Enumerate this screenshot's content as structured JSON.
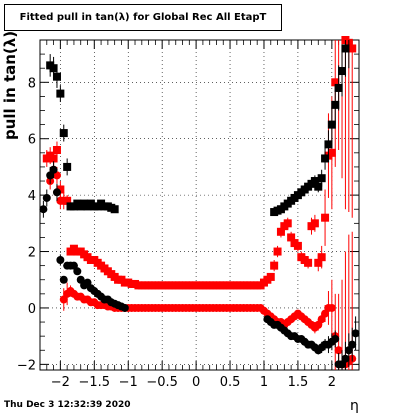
{
  "window": {
    "title": "Fitted pull in tan(λ) for Global Rec All EtapT",
    "datestamp": "Thu Dec  3 12:32:39 2020"
  },
  "chart_data": {
    "type": "scatter",
    "title": "Fitted pull in tan(λ) for Global Rec All EtapT",
    "xlabel": "η",
    "ylabel": "pull in tan(λ)",
    "xlim": [
      -2.3,
      2.4
    ],
    "ylim": [
      -2.2,
      9.5
    ],
    "grid": true,
    "xticks": [
      -2,
      -1.5,
      -1,
      -0.5,
      0,
      0.5,
      1,
      1.5,
      2
    ],
    "xtick_labels": [
      "−2",
      "−1.5",
      "−1",
      "−0.5",
      "0",
      "0.5",
      "1",
      "1.5",
      "2"
    ],
    "yticks": [
      -2,
      0,
      2,
      4,
      6,
      8
    ],
    "ytick_labels": [
      "−2",
      "0",
      "2",
      "4",
      "6",
      "8"
    ],
    "series": [
      {
        "color": "#000000",
        "marker": "square",
        "x": [
          -2.15,
          -2.1,
          -2.05,
          -2.0,
          -1.95,
          -1.9,
          -1.85,
          -1.8,
          -1.75,
          -1.7,
          -1.65,
          -1.6,
          -1.55,
          -1.5,
          -1.45,
          -1.4,
          -1.35,
          -1.3,
          -1.25,
          -1.2,
          1.15,
          1.2,
          1.25,
          1.3,
          1.35,
          1.4,
          1.45,
          1.5,
          1.55,
          1.6,
          1.65,
          1.7,
          1.75,
          1.8,
          1.85,
          1.9,
          1.95,
          2.0,
          2.05,
          2.1,
          2.15,
          2.2,
          2.25
        ],
        "y": [
          8.6,
          8.5,
          8.2,
          7.6,
          6.2,
          5.0,
          3.6,
          3.6,
          3.7,
          3.6,
          3.7,
          3.6,
          3.7,
          3.6,
          3.6,
          3.7,
          3.6,
          3.6,
          3.55,
          3.5,
          3.4,
          3.45,
          3.5,
          3.6,
          3.7,
          3.8,
          3.9,
          4.0,
          4.1,
          4.2,
          4.3,
          4.4,
          4.5,
          4.3,
          4.6,
          5.3,
          5.8,
          6.5,
          7.2,
          7.8,
          8.4,
          9.2,
          9.6
        ],
        "yerr": [
          0.4,
          0.4,
          0.4,
          0.3,
          0.3,
          0.3,
          0.1,
          0.1,
          0.1,
          0.1,
          0.1,
          0.1,
          0.1,
          0.1,
          0.1,
          0.1,
          0.1,
          0.1,
          0.1,
          0.1,
          0.1,
          0.1,
          0.1,
          0.1,
          0.1,
          0.1,
          0.1,
          0.15,
          0.15,
          0.15,
          0.15,
          0.15,
          0.2,
          0.2,
          0.3,
          0.4,
          0.5,
          0.6,
          0.7,
          0.8,
          0.9,
          1.0,
          1.1
        ]
      },
      {
        "color": "#000000",
        "marker": "circle",
        "x": [
          -2.25,
          -2.2,
          -2.15,
          -2.1,
          -2.05,
          -2.0,
          -1.95,
          -1.9,
          -1.85,
          -1.8,
          -1.75,
          -1.7,
          -1.65,
          -1.6,
          -1.55,
          -1.5,
          -1.45,
          -1.4,
          -1.35,
          -1.3,
          -1.25,
          -1.2,
          -1.15,
          -1.1,
          -1.05,
          1.05,
          1.1,
          1.15,
          1.2,
          1.25,
          1.3,
          1.35,
          1.4,
          1.45,
          1.5,
          1.55,
          1.6,
          1.65,
          1.7,
          1.75,
          1.8,
          1.85,
          1.9,
          1.95,
          2.0,
          2.05,
          2.1,
          2.15,
          2.2,
          2.25,
          2.3,
          2.35
        ],
        "y": [
          3.5,
          3.9,
          4.7,
          4.9,
          4.1,
          1.7,
          1.0,
          1.5,
          1.5,
          1.5,
          1.3,
          1.0,
          0.8,
          0.9,
          0.7,
          0.6,
          0.5,
          0.4,
          0.3,
          0.3,
          0.2,
          0.15,
          0.1,
          0.05,
          0.0,
          -0.4,
          -0.5,
          -0.6,
          -0.6,
          -0.7,
          -0.8,
          -0.9,
          -1.0,
          -1.0,
          -1.1,
          -1.1,
          -1.2,
          -1.3,
          -1.3,
          -1.4,
          -1.5,
          -1.4,
          -1.3,
          -1.3,
          -1.2,
          -1.1,
          -2.0,
          -2.0,
          -1.8,
          -1.5,
          -1.3,
          -0.9
        ],
        "yerr": [
          0.3,
          0.3,
          0.3,
          0.3,
          0.3,
          0.2,
          0.1,
          0.1,
          0.1,
          0.1,
          0.1,
          0.1,
          0.1,
          0.1,
          0.1,
          0.1,
          0.1,
          0.1,
          0.1,
          0.1,
          0.1,
          0.1,
          0.1,
          0.1,
          0.1,
          0.1,
          0.1,
          0.1,
          0.1,
          0.1,
          0.1,
          0.1,
          0.1,
          0.1,
          0.1,
          0.1,
          0.1,
          0.1,
          0.1,
          0.15,
          0.15,
          0.2,
          0.2,
          0.3,
          0.3,
          0.3,
          0.4,
          0.5,
          0.6,
          0.6,
          0.6,
          0.6
        ]
      },
      {
        "color": "#ff0000",
        "marker": "square",
        "x": [
          -2.2,
          -2.15,
          -2.1,
          -2.05,
          -2.0,
          -1.95,
          -1.9,
          -1.85,
          -1.8,
          -1.75,
          -1.7,
          -1.65,
          -1.6,
          -1.55,
          -1.5,
          -1.45,
          -1.4,
          -1.35,
          -1.3,
          -1.25,
          -1.2,
          -1.15,
          -1.1,
          -1.05,
          -1.0,
          -0.95,
          -0.9,
          -0.85,
          -0.8,
          -0.75,
          -0.7,
          -0.65,
          -0.6,
          -0.55,
          -0.5,
          -0.45,
          -0.4,
          -0.35,
          -0.3,
          -0.25,
          -0.2,
          -0.15,
          -0.1,
          -0.05,
          0.0,
          0.05,
          0.1,
          0.15,
          0.2,
          0.25,
          0.3,
          0.35,
          0.4,
          0.45,
          0.5,
          0.55,
          0.6,
          0.65,
          0.7,
          0.75,
          0.8,
          0.85,
          0.9,
          0.95,
          1.0,
          1.05,
          1.1,
          1.15,
          1.2,
          1.25,
          1.3,
          1.35,
          1.4,
          1.45,
          1.5,
          1.55,
          1.6,
          1.65,
          1.7,
          1.75,
          1.8,
          1.85,
          1.9,
          1.95,
          2.0,
          2.05,
          2.1,
          2.15,
          2.2,
          2.25,
          2.3
        ],
        "y": [
          5.3,
          5.4,
          5.3,
          5.6,
          4.2,
          3.8,
          3.8,
          2.0,
          2.1,
          2.0,
          2.0,
          1.9,
          1.8,
          1.7,
          1.7,
          1.6,
          1.5,
          1.4,
          1.3,
          1.2,
          1.1,
          1.0,
          1.0,
          0.9,
          0.9,
          0.85,
          0.85,
          0.8,
          0.8,
          0.8,
          0.8,
          0.8,
          0.8,
          0.8,
          0.8,
          0.8,
          0.8,
          0.8,
          0.8,
          0.8,
          0.8,
          0.8,
          0.8,
          0.8,
          0.8,
          0.8,
          0.8,
          0.8,
          0.8,
          0.8,
          0.8,
          0.8,
          0.8,
          0.8,
          0.8,
          0.8,
          0.8,
          0.8,
          0.8,
          0.8,
          0.8,
          0.8,
          0.8,
          0.8,
          0.9,
          1.0,
          1.1,
          1.5,
          2.0,
          2.7,
          2.9,
          3.0,
          2.5,
          2.3,
          2.2,
          1.8,
          1.7,
          1.6,
          2.9,
          3.0,
          1.6,
          1.8,
          3.2,
          5.4,
          5.5,
          8.0,
          9.6,
          9.6,
          9.5,
          9.4,
          9.2
        ],
        "yerr": [
          0.3,
          0.3,
          0.3,
          0.3,
          0.3,
          0.3,
          0.2,
          0.1,
          0.1,
          0.1,
          0.1,
          0.1,
          0.1,
          0.1,
          0.1,
          0.1,
          0.1,
          0.1,
          0.1,
          0.1,
          0.1,
          0.1,
          0.1,
          0.1,
          0.1,
          0.1,
          0.1,
          0.1,
          0.1,
          0.1,
          0.1,
          0.1,
          0.1,
          0.1,
          0.1,
          0.1,
          0.1,
          0.1,
          0.1,
          0.1,
          0.1,
          0.1,
          0.1,
          0.1,
          0.1,
          0.1,
          0.1,
          0.1,
          0.1,
          0.1,
          0.1,
          0.1,
          0.1,
          0.1,
          0.1,
          0.1,
          0.1,
          0.1,
          0.1,
          0.1,
          0.1,
          0.1,
          0.1,
          0.1,
          0.1,
          0.1,
          0.1,
          0.2,
          0.2,
          0.2,
          0.2,
          0.2,
          0.2,
          0.2,
          0.2,
          0.2,
          0.2,
          0.2,
          0.3,
          0.3,
          0.3,
          0.4,
          1.0,
          1.5,
          2.0,
          3.0,
          4.0,
          5.0,
          6.0,
          6.0,
          6.0
        ]
      },
      {
        "color": "#ff0000",
        "marker": "circle",
        "x": [
          -2.15,
          -2.1,
          -2.05,
          -2.0,
          -1.95,
          -1.9,
          -1.85,
          -1.8,
          -1.75,
          -1.7,
          -1.65,
          -1.6,
          -1.55,
          -1.5,
          -1.45,
          -1.4,
          -1.35,
          -1.3,
          -1.25,
          -1.2,
          -1.15,
          -1.1,
          -1.05,
          -1.0,
          -0.95,
          -0.9,
          -0.85,
          -0.8,
          -0.75,
          -0.7,
          -0.65,
          -0.6,
          -0.55,
          -0.5,
          -0.45,
          -0.4,
          -0.35,
          -0.3,
          -0.25,
          -0.2,
          -0.15,
          -0.1,
          -0.05,
          0.0,
          0.05,
          0.1,
          0.15,
          0.2,
          0.25,
          0.3,
          0.35,
          0.4,
          0.45,
          0.5,
          0.55,
          0.6,
          0.65,
          0.7,
          0.75,
          0.8,
          0.85,
          0.9,
          0.95,
          1.0,
          1.05,
          1.1,
          1.15,
          1.2,
          1.25,
          1.3,
          1.35,
          1.4,
          1.45,
          1.5,
          1.55,
          1.6,
          1.65,
          1.7,
          1.75,
          1.8,
          1.85,
          1.9,
          1.95,
          2.0,
          2.05,
          2.1,
          2.15,
          2.2,
          2.25,
          2.3
        ],
        "y": [
          4.5,
          4.9,
          4.7,
          3.8,
          0.3,
          0.5,
          0.6,
          0.5,
          0.4,
          0.4,
          0.3,
          0.3,
          0.2,
          0.2,
          0.1,
          0.1,
          0.1,
          0.05,
          0.05,
          0.0,
          0.0,
          0.0,
          0.0,
          0.0,
          0.0,
          0.0,
          0.0,
          0.0,
          0.0,
          0.0,
          0.0,
          0.0,
          0.0,
          0.0,
          0.0,
          0.0,
          0.0,
          0.0,
          0.0,
          0.0,
          0.0,
          0.0,
          0.0,
          0.0,
          0.0,
          0.0,
          0.0,
          0.0,
          0.0,
          0.0,
          0.0,
          0.0,
          0.0,
          0.0,
          0.0,
          0.0,
          0.0,
          0.0,
          0.0,
          0.0,
          0.0,
          0.0,
          0.0,
          -0.1,
          -0.2,
          -0.3,
          -0.4,
          -0.5,
          -0.5,
          -0.6,
          -0.5,
          -0.4,
          -0.3,
          -0.2,
          -0.3,
          -0.4,
          -0.5,
          -0.6,
          -0.7,
          -0.6,
          -0.4,
          -0.2,
          0.0,
          0.0,
          -1.0,
          -1.5,
          -2.0,
          -2.0,
          -1.9,
          -1.8
        ],
        "yerr": [
          0.3,
          0.3,
          0.3,
          0.3,
          0.4,
          0.4,
          0.2,
          0.1,
          0.1,
          0.1,
          0.1,
          0.1,
          0.1,
          0.1,
          0.1,
          0.1,
          0.1,
          0.1,
          0.1,
          0.1,
          0.1,
          0.1,
          0.1,
          0.1,
          0.1,
          0.1,
          0.1,
          0.1,
          0.1,
          0.1,
          0.1,
          0.1,
          0.1,
          0.1,
          0.1,
          0.1,
          0.1,
          0.1,
          0.1,
          0.1,
          0.1,
          0.1,
          0.1,
          0.1,
          0.1,
          0.1,
          0.1,
          0.1,
          0.1,
          0.1,
          0.1,
          0.1,
          0.1,
          0.1,
          0.1,
          0.1,
          0.1,
          0.1,
          0.1,
          0.1,
          0.1,
          0.1,
          0.1,
          0.1,
          0.1,
          0.1,
          0.1,
          0.1,
          0.1,
          0.1,
          0.1,
          0.1,
          0.1,
          0.1,
          0.1,
          0.1,
          0.1,
          0.1,
          0.2,
          0.2,
          0.2,
          0.3,
          0.6,
          1.0,
          1.5,
          2.0,
          3.0,
          4.0,
          4.5,
          4.5
        ]
      }
    ]
  }
}
